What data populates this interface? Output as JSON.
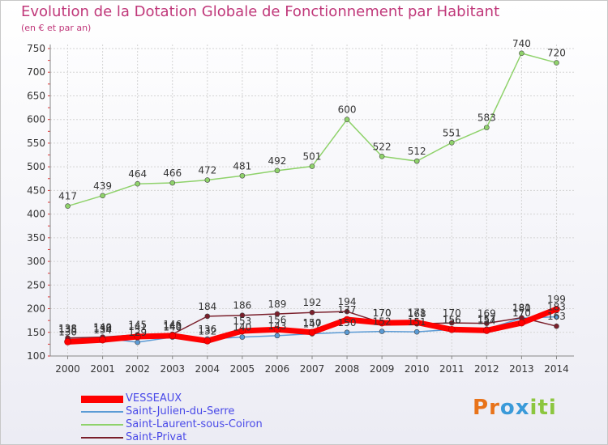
{
  "header": {
    "title": "Evolution de la Dotation Globale de Fonctionnement par Habitant",
    "subtitle": "(en € et par an)"
  },
  "logo": {
    "letters": [
      "P",
      "r",
      "o",
      "x",
      "i",
      "t",
      "i"
    ],
    "colors": [
      "#e8731a",
      "#e8731a",
      "#3a9ad9",
      "#3a9ad9",
      "#8cc63f",
      "#8cc63f",
      "#8cc63f"
    ]
  },
  "chart_data": {
    "type": "line",
    "title": "Evolution de la Dotation Globale de Fonctionnement par Habitant",
    "subtitle": "(en € et par an)",
    "xlabel": "",
    "ylabel": "",
    "x": [
      "2000",
      "2001",
      "2002",
      "2003",
      "2004",
      "2005",
      "2006",
      "2007",
      "2008",
      "2009",
      "2010",
      "2011",
      "2012",
      "2013",
      "2014"
    ],
    "ylim": [
      100,
      750
    ],
    "yticks": [
      "100",
      "150",
      "200",
      "250",
      "300",
      "350",
      "400",
      "450",
      "500",
      "550",
      "600",
      "650",
      "700",
      "750"
    ],
    "grid": true,
    "series": [
      {
        "name": "VESSEAUX",
        "color": "#ff0000",
        "values": [
          130,
          134,
          141,
          143,
          132,
          153,
          156,
          150,
          177,
          170,
          171,
          156,
          154,
          170,
          199
        ],
        "labels": [
          "130",
          "134",
          "141",
          "143",
          "132",
          "153",
          "156",
          "150",
          "177",
          "170",
          "171",
          "156",
          "154",
          "170",
          "199"
        ]
      },
      {
        "name": "Saint-Julien-du-Serre",
        "color": "#5b9bd5",
        "values": [
          135,
          138,
          129,
          140,
          136,
          140,
          143,
          147,
          150,
          152,
          151,
          156,
          157,
          180,
          183
        ],
        "labels": [
          "135",
          "138",
          "129",
          "140",
          "136",
          "140",
          "143",
          "147",
          "150",
          "152",
          "151",
          "156",
          "157",
          "180",
          "183"
        ]
      },
      {
        "name": "Saint-Laurent-sous-Coiron",
        "color": "#8fd26b",
        "values": [
          417,
          439,
          464,
          466,
          472,
          481,
          492,
          501,
          600,
          522,
          512,
          551,
          583,
          740,
          720
        ],
        "labels": [
          "417",
          "439",
          "464",
          "466",
          "472",
          "481",
          "492",
          "501",
          "600",
          "522",
          "512",
          "551",
          "583",
          "740",
          "720"
        ]
      },
      {
        "name": "Saint-Privat",
        "color": "#7a1f2b",
        "values": [
          138,
          140,
          145,
          146,
          184,
          186,
          189,
          192,
          194,
          170,
          168,
          170,
          169,
          181,
          163
        ],
        "labels": [
          "138",
          "140",
          "145",
          "146",
          "184",
          "186",
          "189",
          "192",
          "194",
          "170",
          "168",
          "170",
          "169",
          "181",
          "163"
        ]
      }
    ]
  }
}
